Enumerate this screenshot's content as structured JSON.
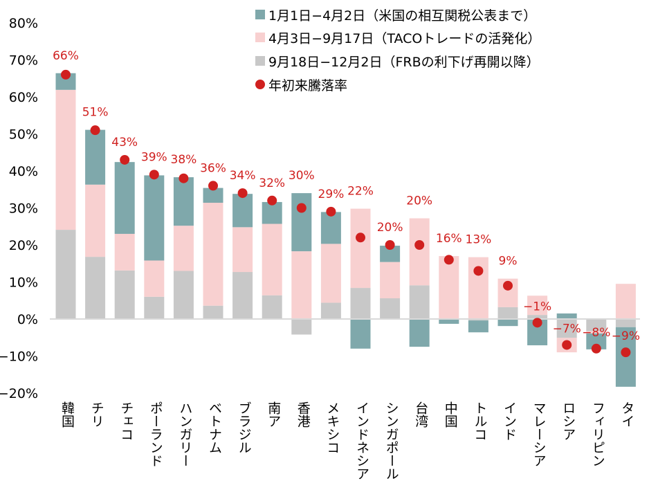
{
  "chart_data": {
    "type": "bar",
    "stacked": true,
    "ylim": [
      -20,
      80
    ],
    "yticks": [
      -20,
      -10,
      0,
      10,
      20,
      30,
      40,
      50,
      60,
      70,
      80
    ],
    "ytick_labels": [
      "−20%",
      "−10%",
      "0%",
      "10%",
      "20%",
      "30%",
      "40%",
      "50%",
      "60%",
      "70%",
      "80%"
    ],
    "grid": false,
    "legend_position": "top-right",
    "categories": [
      "韓国",
      "チリ",
      "チェコ",
      "ポーランド",
      "ハンガリー",
      "ベトナム",
      "ブラジル",
      "南ア",
      "香港",
      "メキシコ",
      "インドネシア",
      "シンガポール",
      "台湾",
      "中国",
      "トルコ",
      "インド",
      "マレーシア",
      "ロシア",
      "フィリピン",
      "タイ"
    ],
    "series": [
      {
        "name": "9月18日−12月2日（FRBの利下げ再開以降）",
        "color": "#c8c8c8",
        "values": [
          24.1,
          16.8,
          13.1,
          6.0,
          13.0,
          3.6,
          12.7,
          6.4,
          -4.2,
          4.4,
          8.4,
          5.6,
          9.1,
          0.0,
          -0.4,
          3.2,
          1.1,
          -5.1,
          -3.3,
          -2.2
        ]
      },
      {
        "name": "4月3日−9月17日（TACOトレードの活発化）",
        "color": "#f8d0d0",
        "values": [
          37.8,
          19.5,
          9.9,
          9.8,
          12.2,
          27.8,
          12.1,
          19.3,
          18.3,
          15.9,
          21.4,
          9.8,
          18.1,
          17.0,
          16.7,
          7.7,
          5.2,
          -3.9,
          -0.6,
          9.5
        ]
      },
      {
        "name": "1月1日−4月2日（米国の相互関税公表まで）",
        "color": "#7fa8ab",
        "values": [
          4.5,
          14.8,
          19.4,
          23.0,
          13.1,
          4.0,
          9.0,
          5.9,
          15.7,
          8.6,
          -8.0,
          4.4,
          -7.5,
          -1.3,
          -3.2,
          -1.9,
          -7.1,
          1.5,
          -4.3,
          -16.1
        ]
      }
    ],
    "total": {
      "name": "年初来騰落率",
      "color": "#d0201f",
      "values": [
        66,
        51,
        43,
        39,
        38,
        36,
        34,
        32,
        30,
        29,
        22,
        20,
        20,
        16,
        13,
        9,
        -1,
        -7,
        -8,
        -9
      ],
      "labels": [
        "66%",
        "51%",
        "43%",
        "39%",
        "38%",
        "36%",
        "34%",
        "32%",
        "30%",
        "29%",
        "22%",
        "20%",
        "20%",
        "16%",
        "13%",
        "9%",
        "−1%",
        "−7%",
        "−8%",
        "−9%"
      ]
    }
  },
  "legend": [
    {
      "label": "1月1日−4月2日（米国の相互関税公表まで）",
      "color": "#7fa8ab",
      "marker": "square"
    },
    {
      "label": "4月3日−9月17日（TACOトレードの活発化）",
      "color": "#f8d0d0",
      "marker": "square"
    },
    {
      "label": "9月18日−12月2日（FRBの利下げ再開以降）",
      "color": "#c8c8c8",
      "marker": "square"
    },
    {
      "label": "年初来騰落率",
      "color": "#d0201f",
      "marker": "circle"
    }
  ]
}
